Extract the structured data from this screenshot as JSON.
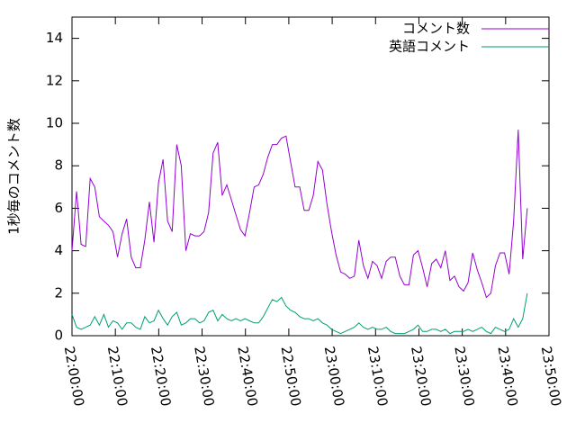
{
  "chart_data": {
    "type": "line",
    "ylabel": "1秒毎のコメント数",
    "x": [
      "22:00:00",
      "22:01:03",
      "22:02:06",
      "22:03:09",
      "22:04:12",
      "22:05:15",
      "22:06:18",
      "22:07:21",
      "22:08:24",
      "22:09:27",
      "22:10:30",
      "22:11:33",
      "22:12:36",
      "22:13:39",
      "22:14:42",
      "22:15:45",
      "22:16:48",
      "22:17:51",
      "22:18:54",
      "22:19:57",
      "22:21:00",
      "22:22:03",
      "22:23:06",
      "22:24:09",
      "22:25:12",
      "22:26:15",
      "22:27:18",
      "22:28:21",
      "22:29:24",
      "22:30:27",
      "22:31:30",
      "22:32:33",
      "22:33:36",
      "22:34:39",
      "22:35:42",
      "22:36:45",
      "22:37:48",
      "22:38:51",
      "22:39:54",
      "22:40:57",
      "22:42:00",
      "22:43:03",
      "22:44:06",
      "22:45:09",
      "22:46:12",
      "22:47:15",
      "22:48:18",
      "22:49:21",
      "22:50:24",
      "22:51:27",
      "22:52:30",
      "22:53:33",
      "22:54:36",
      "22:55:39",
      "22:56:42",
      "22:57:45",
      "22:58:48",
      "22:59:51",
      "23:00:54",
      "23:01:57",
      "23:03:00",
      "23:04:03",
      "23:05:06",
      "23:06:09",
      "23:07:12",
      "23:08:15",
      "23:09:18",
      "23:10:21",
      "23:11:24",
      "23:12:27",
      "23:13:30",
      "23:14:33",
      "23:15:36",
      "23:16:39",
      "23:17:42",
      "23:18:45",
      "23:19:48",
      "23:20:51",
      "23:21:54",
      "23:22:57",
      "23:24:00",
      "23:25:03",
      "23:26:06",
      "23:27:09",
      "23:28:12",
      "23:29:15",
      "23:30:18",
      "23:31:21",
      "23:32:24",
      "23:33:27",
      "23:34:30",
      "23:35:33",
      "23:36:36",
      "23:37:39",
      "23:38:42",
      "23:39:45",
      "23:40:48",
      "23:41:51",
      "23:42:54",
      "23:43:57",
      "23:45:00"
    ],
    "series": [
      {
        "name": "コメント数",
        "color": "#9400d3",
        "values": [
          4.0,
          6.8,
          4.3,
          4.2,
          7.4,
          7.0,
          5.6,
          5.4,
          5.2,
          4.9,
          3.7,
          4.8,
          5.5,
          3.7,
          3.2,
          3.2,
          4.5,
          6.3,
          4.4,
          7.2,
          8.3,
          5.4,
          4.9,
          9.0,
          8.0,
          4.0,
          4.8,
          4.7,
          4.7,
          4.9,
          5.8,
          8.6,
          9.1,
          6.6,
          7.1,
          6.4,
          5.7,
          5.0,
          4.7,
          5.8,
          7.0,
          7.1,
          7.6,
          8.4,
          9.0,
          9.0,
          9.3,
          9.4,
          8.2,
          7.0,
          7.0,
          5.9,
          5.9,
          6.6,
          8.2,
          7.8,
          6.2,
          4.9,
          3.8,
          3.0,
          2.9,
          2.7,
          2.8,
          4.5,
          3.3,
          2.7,
          3.5,
          3.3,
          2.7,
          3.5,
          3.7,
          3.7,
          2.8,
          2.4,
          2.4,
          3.8,
          4.0,
          3.2,
          2.3,
          3.4,
          3.6,
          3.2,
          4.0,
          2.6,
          2.8,
          2.3,
          2.1,
          2.5,
          3.9,
          3.1,
          2.5,
          1.8,
          2.0,
          3.3,
          3.9,
          3.9,
          2.9,
          5.4,
          9.7,
          3.6,
          6.0
        ]
      },
      {
        "name": "英語コメント",
        "color": "#009e73",
        "values": [
          1.0,
          0.4,
          0.3,
          0.4,
          0.5,
          0.9,
          0.5,
          1.0,
          0.4,
          0.7,
          0.6,
          0.3,
          0.6,
          0.6,
          0.4,
          0.3,
          0.9,
          0.6,
          0.7,
          1.2,
          0.8,
          0.5,
          0.9,
          1.1,
          0.5,
          0.6,
          0.8,
          0.8,
          0.6,
          0.7,
          1.1,
          1.2,
          0.7,
          1.0,
          0.8,
          0.7,
          0.8,
          0.7,
          0.8,
          0.7,
          0.6,
          0.6,
          0.9,
          1.3,
          1.7,
          1.6,
          1.8,
          1.4,
          1.2,
          1.1,
          0.9,
          0.8,
          0.8,
          0.7,
          0.8,
          0.6,
          0.5,
          0.3,
          0.2,
          0.1,
          0.2,
          0.3,
          0.4,
          0.6,
          0.4,
          0.3,
          0.4,
          0.3,
          0.3,
          0.4,
          0.2,
          0.1,
          0.1,
          0.1,
          0.2,
          0.3,
          0.5,
          0.2,
          0.2,
          0.3,
          0.3,
          0.2,
          0.3,
          0.1,
          0.2,
          0.2,
          0.2,
          0.3,
          0.2,
          0.3,
          0.4,
          0.2,
          0.1,
          0.4,
          0.3,
          0.2,
          0.3,
          0.8,
          0.4,
          0.8,
          2.0
        ]
      }
    ],
    "xlim": [
      "22:00:00",
      "23:50:00"
    ],
    "xticks": [
      "22:00:00",
      "22:10:00",
      "22:20:00",
      "22:30:00",
      "22:40:00",
      "22:50:00",
      "23:00:00",
      "23:10:00",
      "23:20:00",
      "23:30:00",
      "23:40:00",
      "23:50:00"
    ],
    "ylim": [
      0,
      15
    ],
    "yticks": [
      0,
      2,
      4,
      6,
      8,
      10,
      12,
      14
    ],
    "legend": "top-right"
  }
}
